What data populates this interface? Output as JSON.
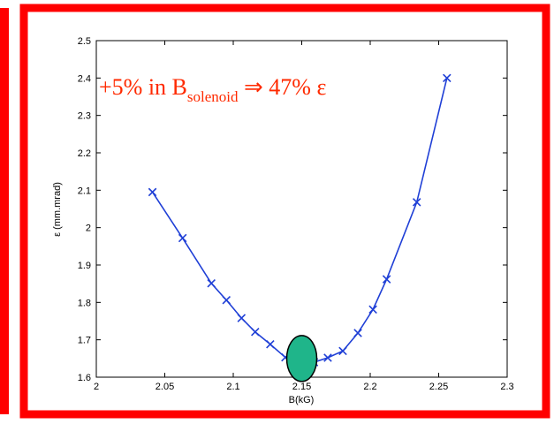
{
  "colors": {
    "frame": "#ff0000",
    "line": "#1f3fd6",
    "marker": "#1f3fd6",
    "highlight_fill": "#1fb58a",
    "annotation": "#ff2a00"
  },
  "chart_data": {
    "type": "line",
    "title": "",
    "xlabel": "B(kG)",
    "ylabel": "ε (mm.mrad)",
    "xlim": [
      2.0,
      2.3
    ],
    "ylim": [
      1.6,
      2.5
    ],
    "xticks": [
      "2",
      "2.05",
      "2.1",
      "2.15",
      "2.2",
      "2.25",
      "2.3"
    ],
    "yticks": [
      "1.6",
      "1.7",
      "1.8",
      "1.9",
      "2",
      "2.1",
      "2.2",
      "2.3",
      "2.4",
      "2.5"
    ],
    "grid": false,
    "series": [
      {
        "marker": "x",
        "x": [
          2.041,
          2.063,
          2.084,
          2.095,
          2.106,
          2.116,
          2.127,
          2.138,
          2.148,
          2.159,
          2.169,
          2.18,
          2.191,
          2.202,
          2.212,
          2.234,
          2.256
        ],
        "y": [
          2.095,
          1.972,
          1.851,
          1.806,
          1.758,
          1.721,
          1.688,
          1.653,
          1.645,
          1.64,
          1.652,
          1.67,
          1.718,
          1.781,
          1.862,
          2.068,
          2.4
        ]
      }
    ],
    "highlight": {
      "shape": "ellipse",
      "x": 2.15,
      "y": 1.65
    },
    "annotation": {
      "prefix": "+5% in B",
      "subscript": "solenoid",
      "suffix": " ⇒ 47% ε"
    }
  }
}
